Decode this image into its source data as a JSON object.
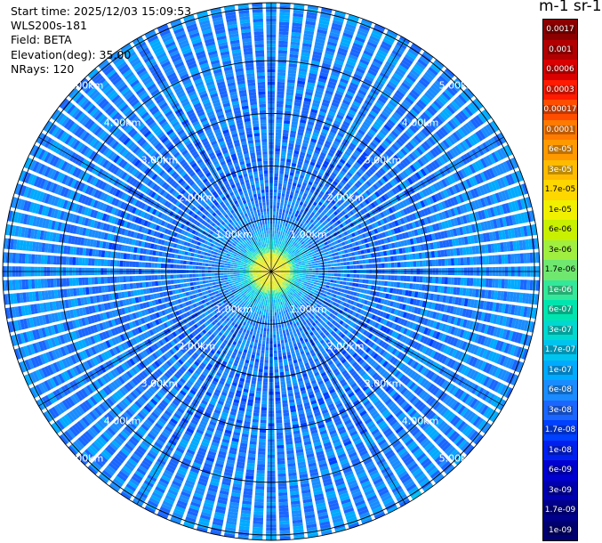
{
  "info": {
    "start_time": "Start time: 2025/12/03 15:09:53",
    "instrument": "WLS200s-181",
    "field": "Field: BETA",
    "elevation": "Elevation(deg): 35.00",
    "nrays": "NRays: 120"
  },
  "colorbar": {
    "unit_title": "m-1 sr-1",
    "levels": [
      {
        "label": "0.0017",
        "color": "#8b0000",
        "text_color": "#ffffff"
      },
      {
        "label": "0.001",
        "color": "#b20000",
        "text_color": "#ffffff"
      },
      {
        "label": "0.0006",
        "color": "#d90000",
        "text_color": "#ffffff"
      },
      {
        "label": "0.0003",
        "color": "#ff1a00",
        "text_color": "#ffffff"
      },
      {
        "label": "0.00017",
        "color": "#ff4d00",
        "text_color": "#ffffff"
      },
      {
        "label": "0.0001",
        "color": "#ff7a00",
        "text_color": "#ffffff"
      },
      {
        "label": "6e-05",
        "color": "#ff9900",
        "text_color": "#ffffff"
      },
      {
        "label": "3e-05",
        "color": "#ffbb00",
        "text_color": "#ffffff"
      },
      {
        "label": "1.7e-05",
        "color": "#ffd700",
        "text_color": "#000000"
      },
      {
        "label": "1e-05",
        "color": "#f0f000",
        "text_color": "#000000"
      },
      {
        "label": "6e-06",
        "color": "#c8f000",
        "text_color": "#000000"
      },
      {
        "label": "3e-06",
        "color": "#a0ee40",
        "text_color": "#000000"
      },
      {
        "label": "1.7e-06",
        "color": "#70e870",
        "text_color": "#000000"
      },
      {
        "label": "1e-06",
        "color": "#33e89a",
        "text_color": "#ffffff"
      },
      {
        "label": "6e-07",
        "color": "#00e5b0",
        "text_color": "#ffffff"
      },
      {
        "label": "3e-07",
        "color": "#00d8d0",
        "text_color": "#ffffff"
      },
      {
        "label": "1.7e-07",
        "color": "#00c4ee",
        "text_color": "#ffffff"
      },
      {
        "label": "1e-07",
        "color": "#00aaff",
        "text_color": "#ffffff"
      },
      {
        "label": "6e-08",
        "color": "#1a8cff",
        "text_color": "#ffffff"
      },
      {
        "label": "3e-08",
        "color": "#1a66ff",
        "text_color": "#ffffff"
      },
      {
        "label": "1.7e-08",
        "color": "#0040ff",
        "text_color": "#ffffff"
      },
      {
        "label": "1e-08",
        "color": "#0020f0",
        "text_color": "#ffffff"
      },
      {
        "label": "6e-09",
        "color": "#0000d0",
        "text_color": "#ffffff"
      },
      {
        "label": "3e-09",
        "color": "#0000b0",
        "text_color": "#ffffff"
      },
      {
        "label": "1.7e-09",
        "color": "#00008b",
        "text_color": "#ffffff"
      },
      {
        "label": "1e-09",
        "color": "#000070",
        "text_color": "#ffffff"
      }
    ]
  },
  "chart_data": {
    "type": "heatmap",
    "projection": "polar PPI",
    "field": "BETA",
    "elevation_deg": 35.0,
    "n_rays": 120,
    "max_range_km": 5.1,
    "range_rings_km": [
      1,
      2,
      3,
      4,
      5
    ],
    "range_ring_labels": [
      "1.00km",
      "2.00km",
      "3.00km",
      "4.00km",
      "5.00km"
    ],
    "label_bearings_deg": [
      315,
      45,
      225,
      135
    ],
    "radial_profile": [
      {
        "range_km": 0.0,
        "value": 1.5e-05
      },
      {
        "range_km": 0.3,
        "value": 8e-06
      },
      {
        "range_km": 0.5,
        "value": 2e-07
      },
      {
        "range_km": 1.0,
        "value": 5e-08
      },
      {
        "range_km": 2.0,
        "value": 4e-08
      },
      {
        "range_km": 3.0,
        "value": 4.5e-08
      },
      {
        "range_km": 4.0,
        "value": 5e-08
      },
      {
        "range_km": 5.1,
        "value": 6e-08
      }
    ]
  }
}
